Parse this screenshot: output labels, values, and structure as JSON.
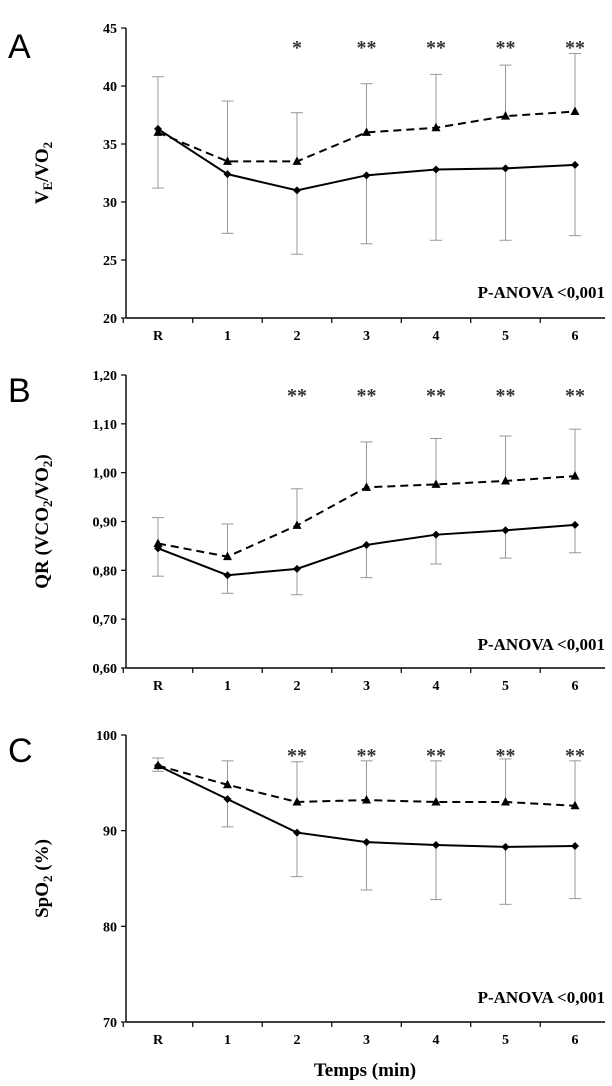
{
  "figure": {
    "xlabel": "Temps (min)"
  },
  "chart_data": [
    {
      "type": "line",
      "panel": "A",
      "ylabel": "VE/VO2",
      "ylabel_main": "V",
      "ylabel_sub1": "E",
      "ylabel_mid": "/VO",
      "ylabel_sub2": "2",
      "ylabel_tail": "",
      "ylim": [
        20,
        45
      ],
      "yticks": [
        "20",
        "25",
        "30",
        "35",
        "40",
        "45"
      ],
      "ytick_values": [
        20,
        25,
        30,
        35,
        40,
        45
      ],
      "categories": [
        "R",
        "1",
        "2",
        "3",
        "4",
        "5",
        "6"
      ],
      "series": [
        {
          "style": "solid",
          "marker": "diamond",
          "values": [
            36.3,
            32.4,
            31.0,
            32.3,
            32.8,
            32.9,
            33.2
          ],
          "err_low": [
            5.1,
            5.1,
            5.5,
            5.9,
            6.1,
            6.2,
            6.1
          ]
        },
        {
          "style": "dashed",
          "marker": "triangle",
          "values": [
            36.0,
            33.5,
            33.5,
            36.0,
            36.4,
            37.4,
            37.8
          ],
          "err_high": [
            4.8,
            5.2,
            4.2,
            4.2,
            4.6,
            4.4,
            5.0
          ]
        }
      ],
      "significance": [
        "",
        "",
        "*",
        "**",
        "**",
        "**",
        "**"
      ],
      "anova": "P-ANOVA <0,001",
      "grid": false
    },
    {
      "type": "line",
      "panel": "B",
      "ylabel": "QR (VCO2/VO2)",
      "ylabel_main": "QR (VCO",
      "ylabel_sub1": "2",
      "ylabel_mid": "/VO",
      "ylabel_sub2": "2",
      "ylabel_tail": ")",
      "ylim": [
        0.6,
        1.2
      ],
      "yticks": [
        "0,60",
        "0,70",
        "0,80",
        "0,90",
        "1,00",
        "1,10",
        "1,20"
      ],
      "ytick_values": [
        0.6,
        0.7,
        0.8,
        0.9,
        1.0,
        1.1,
        1.2
      ],
      "categories": [
        "R",
        "1",
        "2",
        "3",
        "4",
        "5",
        "6"
      ],
      "series": [
        {
          "style": "solid",
          "marker": "diamond",
          "values": [
            0.845,
            0.79,
            0.803,
            0.852,
            0.873,
            0.882,
            0.893
          ],
          "err_low": [
            0.057,
            0.037,
            0.053,
            0.067,
            0.06,
            0.057,
            0.057
          ]
        },
        {
          "style": "dashed",
          "marker": "triangle",
          "values": [
            0.855,
            0.828,
            0.892,
            0.97,
            0.976,
            0.983,
            0.993
          ],
          "err_high": [
            0.053,
            0.067,
            0.075,
            0.093,
            0.094,
            0.092,
            0.096
          ]
        }
      ],
      "significance": [
        "",
        "",
        "**",
        "**",
        "**",
        "**",
        "**"
      ],
      "anova": "P-ANOVA <0,001",
      "grid": false
    },
    {
      "type": "line",
      "panel": "C",
      "ylabel": "SpO2 (%)",
      "ylabel_main": "SpO",
      "ylabel_sub1": "2",
      "ylabel_mid": " (%)",
      "ylabel_sub2": "",
      "ylabel_tail": "",
      "ylim": [
        70,
        100
      ],
      "yticks": [
        "70",
        "80",
        "90",
        "100"
      ],
      "ytick_values": [
        70,
        80,
        90,
        100
      ],
      "categories": [
        "R",
        "1",
        "2",
        "3",
        "4",
        "5",
        "6"
      ],
      "series": [
        {
          "style": "solid",
          "marker": "diamond",
          "values": [
            96.8,
            93.3,
            89.8,
            88.8,
            88.5,
            88.3,
            88.4
          ],
          "err_low": [
            0.6,
            2.9,
            4.6,
            5.0,
            5.7,
            6.0,
            5.5
          ]
        },
        {
          "style": "dashed",
          "marker": "triangle",
          "values": [
            96.8,
            94.8,
            93.0,
            93.2,
            93.0,
            93.0,
            92.6
          ],
          "err_high": [
            0.8,
            2.5,
            4.2,
            4.1,
            4.3,
            4.5,
            4.7
          ]
        }
      ],
      "significance": [
        "",
        "",
        "**",
        "**",
        "**",
        "**",
        "**"
      ],
      "anova": "P-ANOVA <0,001",
      "grid": false
    }
  ]
}
